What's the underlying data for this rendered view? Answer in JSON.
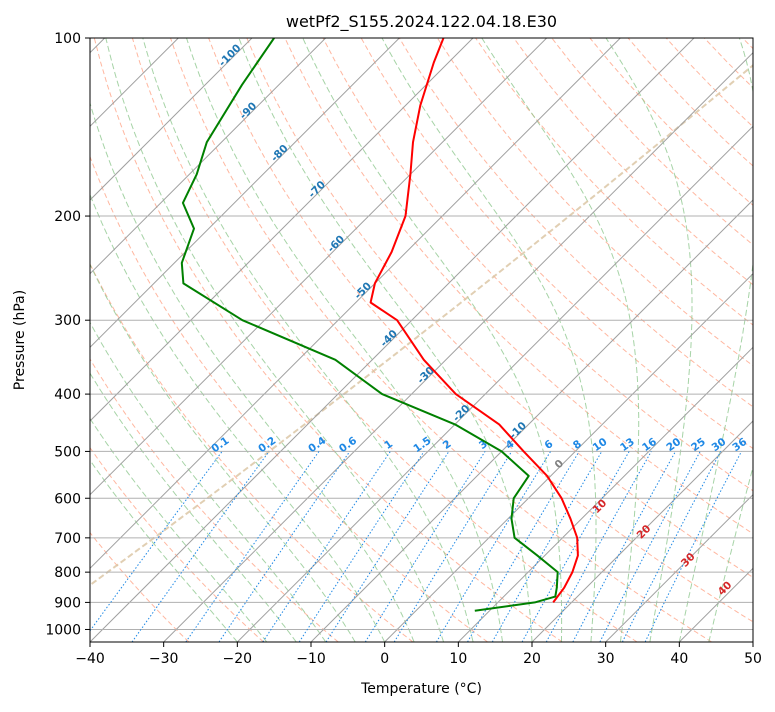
{
  "chart_data": {
    "type": "skew-t log-p",
    "title": "wetPf2_S155.2024.122.04.18.E30",
    "xlabel": "Temperature (°C)",
    "ylabel": "Pressure (hPa)",
    "xlim": [
      -40,
      50
    ],
    "ylim": [
      1050,
      100
    ],
    "x_ticks": [
      "−40",
      "−30",
      "−20",
      "−10",
      "0",
      "10",
      "20",
      "30",
      "40",
      "50"
    ],
    "y_ticks": [
      "100",
      "200",
      "300",
      "400",
      "500",
      "600",
      "700",
      "800",
      "900",
      "1000"
    ],
    "y_tick_values": [
      100,
      200,
      300,
      400,
      500,
      600,
      700,
      800,
      900,
      1000
    ],
    "grid": true,
    "colors": {
      "temperature": "#ff0000",
      "dewpoint": "#008000",
      "isotherm": "#a0a0a0",
      "dry_adiabat": "#ff9f80",
      "moist_adiabat": "#90c890",
      "mixing_ratio": "#1e88e5",
      "isotherm_label": "#1f77b4",
      "mixing_label": "#1e88e5"
    },
    "isotherm_labels": [
      "-100",
      "-90",
      "-80",
      "-70",
      "-60",
      "-50",
      "-40",
      "-30",
      "-20",
      "-10"
    ],
    "isotherm_label_values": [
      -100,
      -90,
      -80,
      -70,
      -60,
      -50,
      -40,
      -30,
      -20,
      -10
    ],
    "mixing_ratio_labels": [
      "0.1",
      "0.2",
      "0.4",
      "0.6",
      "1",
      "1.5",
      "2",
      "3",
      "4",
      "6",
      "8",
      "10",
      "13",
      "16",
      "20",
      "25",
      "30",
      "36"
    ],
    "mixing_ratio_values": [
      0.1,
      0.2,
      0.4,
      0.6,
      1,
      1.5,
      2,
      3,
      4,
      6,
      8,
      10,
      13,
      16,
      20,
      25,
      30,
      36
    ],
    "moist_adiabat_labels": [
      {
        "text": "0",
        "color": "#808080",
        "p": 530
      },
      {
        "text": "10",
        "color": "#d62728",
        "p": 625
      },
      {
        "text": "20",
        "color": "#d62728",
        "p": 690
      },
      {
        "text": "30",
        "color": "#d62728",
        "p": 770
      },
      {
        "text": "40",
        "color": "#d62728",
        "p": 860
      }
    ],
    "series": [
      {
        "name": "temperature",
        "points": [
          [
            100,
            -74
          ],
          [
            110,
            -72
          ],
          [
            130,
            -68
          ],
          [
            150,
            -64
          ],
          [
            170,
            -60
          ],
          [
            200,
            -55
          ],
          [
            230,
            -52
          ],
          [
            260,
            -50
          ],
          [
            280,
            -48
          ],
          [
            300,
            -42
          ],
          [
            350,
            -33
          ],
          [
            400,
            -24
          ],
          [
            450,
            -14
          ],
          [
            500,
            -7
          ],
          [
            550,
            -0.5
          ],
          [
            600,
            4.5
          ],
          [
            650,
            8.5
          ],
          [
            700,
            12
          ],
          [
            750,
            14.5
          ],
          [
            800,
            16
          ],
          [
            850,
            17
          ],
          [
            900,
            17.5
          ]
        ]
      },
      {
        "name": "dewpoint",
        "points": [
          [
            100,
            -97
          ],
          [
            120,
            -95
          ],
          [
            150,
            -92
          ],
          [
            170,
            -89
          ],
          [
            190,
            -87
          ],
          [
            210,
            -82
          ],
          [
            240,
            -79
          ],
          [
            260,
            -76
          ],
          [
            300,
            -63
          ],
          [
            350,
            -45
          ],
          [
            400,
            -34
          ],
          [
            450,
            -20
          ],
          [
            500,
            -10
          ],
          [
            550,
            -3
          ],
          [
            600,
            -2
          ],
          [
            650,
            0.5
          ],
          [
            700,
            3.5
          ],
          [
            750,
            9
          ],
          [
            800,
            14
          ],
          [
            850,
            16
          ],
          [
            880,
            17
          ],
          [
            900,
            15
          ],
          [
            930,
            8
          ]
        ]
      }
    ]
  }
}
